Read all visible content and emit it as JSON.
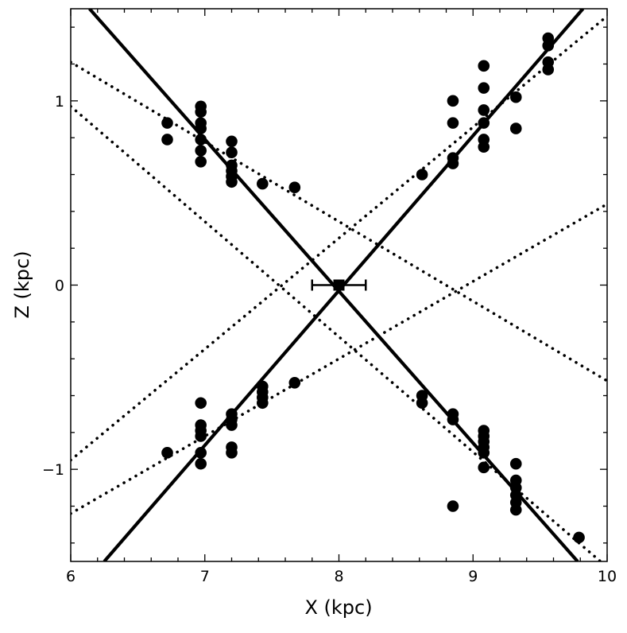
{
  "chart_data": {
    "type": "scatter",
    "xlabel": "X (kpc)",
    "ylabel": "Z (kpc)",
    "xlim": [
      6,
      10
    ],
    "ylim": [
      -1.5,
      1.5
    ],
    "x_ticks": [
      6,
      7,
      8,
      9,
      10
    ],
    "y_ticks": [
      -1,
      0,
      1
    ],
    "x_tick_labels": [
      "6",
      "7",
      "8",
      "9",
      "10"
    ],
    "y_tick_labels": [
      "−1",
      "0",
      "1"
    ],
    "grid": false,
    "colors": {
      "marks": "#000000",
      "background": "#ffffff"
    },
    "solid_lines": [
      {
        "points": [
          [
            6.14,
            1.5
          ],
          [
            9.78,
            -1.5
          ]
        ]
      },
      {
        "points": [
          [
            6.25,
            -1.5
          ],
          [
            9.82,
            1.5
          ]
        ]
      }
    ],
    "dotted_lines": [
      {
        "points": [
          [
            6.0,
            1.21
          ],
          [
            10.0,
            -0.52
          ]
        ]
      },
      {
        "points": [
          [
            6.0,
            0.97
          ],
          [
            9.95,
            -1.5
          ]
        ]
      },
      {
        "points": [
          [
            6.0,
            -0.95
          ],
          [
            10.0,
            1.46
          ]
        ]
      },
      {
        "points": [
          [
            6.0,
            -1.24
          ],
          [
            10.0,
            0.44
          ]
        ]
      }
    ],
    "center_point": {
      "x": 8.0,
      "y": 0.0,
      "xerr": 0.2
    },
    "points": [
      [
        6.72,
        0.88
      ],
      [
        6.72,
        0.79
      ],
      [
        6.97,
        0.97
      ],
      [
        6.97,
        0.94
      ],
      [
        6.97,
        0.88
      ],
      [
        6.97,
        0.85
      ],
      [
        6.97,
        0.79
      ],
      [
        6.97,
        0.73
      ],
      [
        6.97,
        0.67
      ],
      [
        7.2,
        0.78
      ],
      [
        7.2,
        0.72
      ],
      [
        7.2,
        0.65
      ],
      [
        7.2,
        0.62
      ],
      [
        7.2,
        0.59
      ],
      [
        7.2,
        0.56
      ],
      [
        7.43,
        0.55
      ],
      [
        7.67,
        0.53
      ],
      [
        8.62,
        0.6
      ],
      [
        8.85,
        1.0
      ],
      [
        8.85,
        0.88
      ],
      [
        8.85,
        0.69
      ],
      [
        8.85,
        0.66
      ],
      [
        9.08,
        1.19
      ],
      [
        9.08,
        1.07
      ],
      [
        9.08,
        0.95
      ],
      [
        9.08,
        0.88
      ],
      [
        9.08,
        0.79
      ],
      [
        9.08,
        0.75
      ],
      [
        9.32,
        1.02
      ],
      [
        9.32,
        0.85
      ],
      [
        9.56,
        1.34
      ],
      [
        9.56,
        1.3
      ],
      [
        9.56,
        1.21
      ],
      [
        9.56,
        1.17
      ],
      [
        6.72,
        -0.91
      ],
      [
        6.97,
        -0.64
      ],
      [
        6.97,
        -0.76
      ],
      [
        6.97,
        -0.79
      ],
      [
        6.97,
        -0.82
      ],
      [
        6.97,
        -0.91
      ],
      [
        6.97,
        -0.97
      ],
      [
        7.2,
        -0.7
      ],
      [
        7.2,
        -0.73
      ],
      [
        7.2,
        -0.76
      ],
      [
        7.2,
        -0.88
      ],
      [
        7.2,
        -0.91
      ],
      [
        7.43,
        -0.55
      ],
      [
        7.43,
        -0.58
      ],
      [
        7.43,
        -0.61
      ],
      [
        7.43,
        -0.64
      ],
      [
        7.67,
        -0.53
      ],
      [
        8.62,
        -0.6
      ],
      [
        8.62,
        -0.64
      ],
      [
        8.85,
        -0.7
      ],
      [
        8.85,
        -0.73
      ],
      [
        8.85,
        -1.2
      ],
      [
        9.08,
        -0.79
      ],
      [
        9.08,
        -0.82
      ],
      [
        9.08,
        -0.85
      ],
      [
        9.08,
        -0.88
      ],
      [
        9.08,
        -0.91
      ],
      [
        9.08,
        -0.99
      ],
      [
        9.32,
        -0.97
      ],
      [
        9.32,
        -1.06
      ],
      [
        9.32,
        -1.1
      ],
      [
        9.32,
        -1.14
      ],
      [
        9.32,
        -1.18
      ],
      [
        9.32,
        -1.22
      ],
      [
        9.79,
        -1.37
      ]
    ]
  }
}
